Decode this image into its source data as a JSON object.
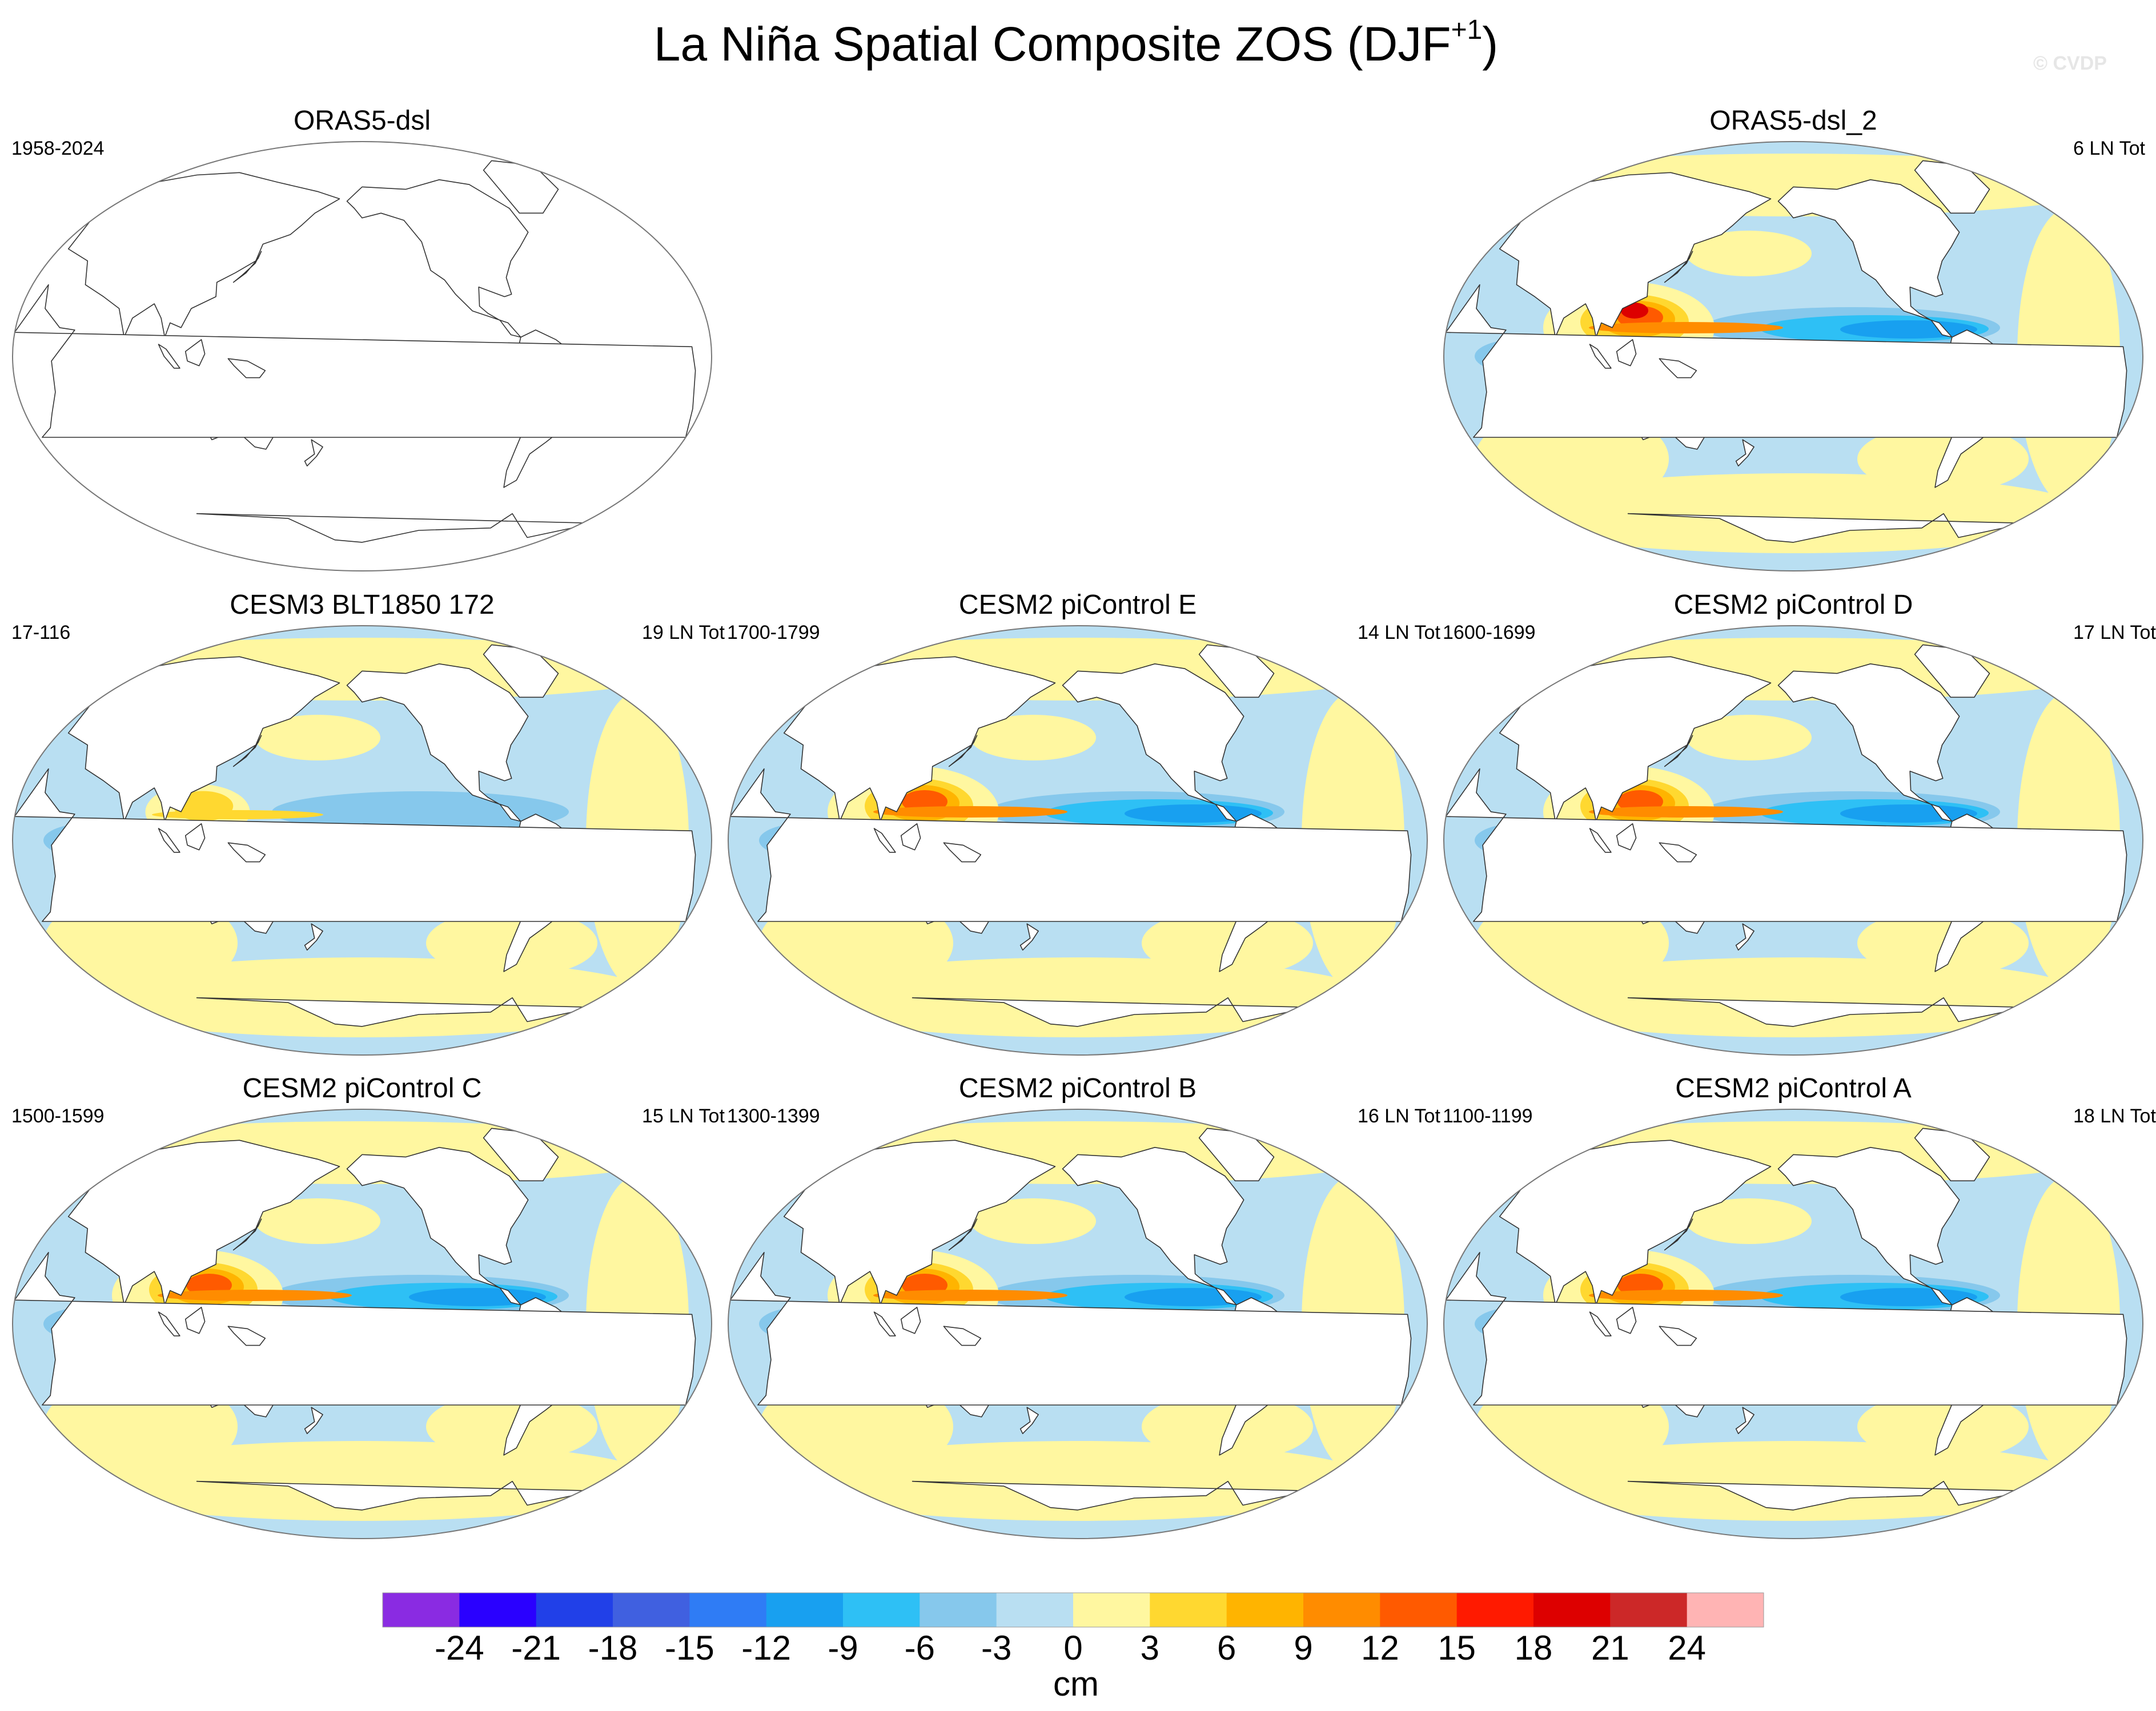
{
  "figure": {
    "title_main": "La Niña Spatial Composite ZOS (DJF",
    "title_sup": "+1",
    "title_end": ")",
    "copyright": "© CVDP"
  },
  "panels": [
    {
      "title": "ORAS5-dsl",
      "left_text": "1958-2024",
      "right_text": "",
      "field": "empty"
    },
    {
      "title": "ORAS5-dsl_2",
      "left_text": "",
      "right_text": "6 LN Tot",
      "field": "obs"
    },
    {
      "title": "CESM3 BLT1850 172",
      "left_text": "17-116",
      "right_text": "19 LN Tot",
      "field": "weak"
    },
    {
      "title": "CESM2 piControl E",
      "left_text": "1700-1799",
      "right_text": "14 LN Tot",
      "field": "strong"
    },
    {
      "title": "CESM2 piControl D",
      "left_text": "1600-1699",
      "right_text": "17 LN Tot",
      "field": "strong"
    },
    {
      "title": "CESM2 piControl C",
      "left_text": "1500-1599",
      "right_text": "15 LN Tot",
      "field": "strong"
    },
    {
      "title": "CESM2 piControl B",
      "left_text": "1300-1399",
      "right_text": "16 LN Tot",
      "field": "strong"
    },
    {
      "title": "CESM2 piControl A",
      "left_text": "1100-1199",
      "right_text": "18 LN Tot",
      "field": "strong"
    }
  ],
  "colorbar": {
    "units": "cm",
    "levels": [
      -24,
      -21,
      -18,
      -15,
      -12,
      -9,
      -6,
      -3,
      0,
      3,
      6,
      9,
      12,
      15,
      18,
      21,
      24
    ],
    "labels": [
      "-24",
      "-21",
      "-18",
      "-15",
      "-12",
      "-9",
      "-6",
      "-3",
      "0",
      "3",
      "6",
      "9",
      "12",
      "15",
      "18",
      "21",
      "24"
    ],
    "colors": [
      "#8a2be2",
      "#2a00ff",
      "#2140e8",
      "#4060e0",
      "#2f7cf5",
      "#18a0f0",
      "#2ec0f5",
      "#86c8ec",
      "#b9dff2",
      "#fff7a0",
      "#ffd830",
      "#ffb400",
      "#ff8c00",
      "#ff5a00",
      "#ff1a00",
      "#dd0000",
      "#cc2828",
      "#ffb4b4"
    ]
  }
}
